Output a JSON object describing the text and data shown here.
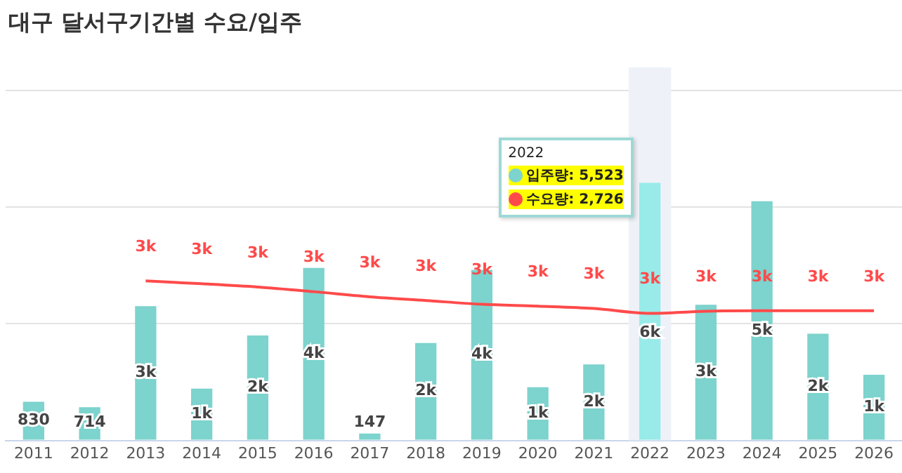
{
  "chart_data": {
    "type": "bar",
    "title": "대구 달서구기간별 수요/입주",
    "categories": [
      "2011",
      "2012",
      "2013",
      "2014",
      "2015",
      "2016",
      "2017",
      "2018",
      "2019",
      "2020",
      "2021",
      "2022",
      "2023",
      "2024",
      "2025",
      "2026"
    ],
    "series": [
      {
        "color": "#7dd3cd",
        "colors": [
          "#7dd3cd",
          "#7dd3cd",
          "#7dd3cd",
          "#7dd3cd",
          "#7dd3cd",
          "#7dd3cd",
          "#7dd3cd",
          "#7dd3cd",
          "#7dd3cd",
          "#7dd3cd",
          "#7dd3cd",
          "#98ebe8",
          "#7dd3cd",
          "#7dd3cd",
          "#7dd3cd",
          "#7dd3cd"
        ],
        "values": [
          830,
          714,
          2880,
          1110,
          2250,
          3700,
          147,
          2090,
          3660,
          1140,
          1630,
          5523,
          2910,
          5130,
          2290,
          1410
        ],
        "value_labels": [
          "830",
          "714",
          "3k",
          "1k",
          "2k",
          "4k",
          "147",
          "2k",
          "4k",
          "1k",
          "2k",
          "6k",
          "3k",
          "5k",
          "2k",
          "1k"
        ]
      },
      {
        "type": "line",
        "color": "#ff4a4a",
        "values": [
          null,
          null,
          3420,
          3360,
          3290,
          3190,
          3080,
          3000,
          2920,
          2880,
          2830,
          2726,
          2770,
          2780,
          2780,
          2780
        ],
        "value_labels": [
          null,
          null,
          "3k",
          "3k",
          "3k",
          "3k",
          "3k",
          "3k",
          "3k",
          "3k",
          "3k",
          "3k",
          "3k",
          "3k",
          "3k",
          "3k"
        ]
      }
    ],
    "ylim": [
      0,
      8000
    ],
    "yticks": [
      {
        "value": 0,
        "label": null
      },
      {
        "value": 2500,
        "label": null
      },
      {
        "value": 5000,
        "label": null
      },
      {
        "value": 7500,
        "label": null
      }
    ],
    "tick_labels": "x",
    "grid": "y",
    "legend": false,
    "marker": "none",
    "bands": [
      {
        "axis": "x",
        "from": "2022",
        "to": "2022",
        "color": "#eef2f8"
      }
    ],
    "annotations": [
      "2022",
      "입주량: 5,523",
      "수요량: 2,726"
    ]
  }
}
